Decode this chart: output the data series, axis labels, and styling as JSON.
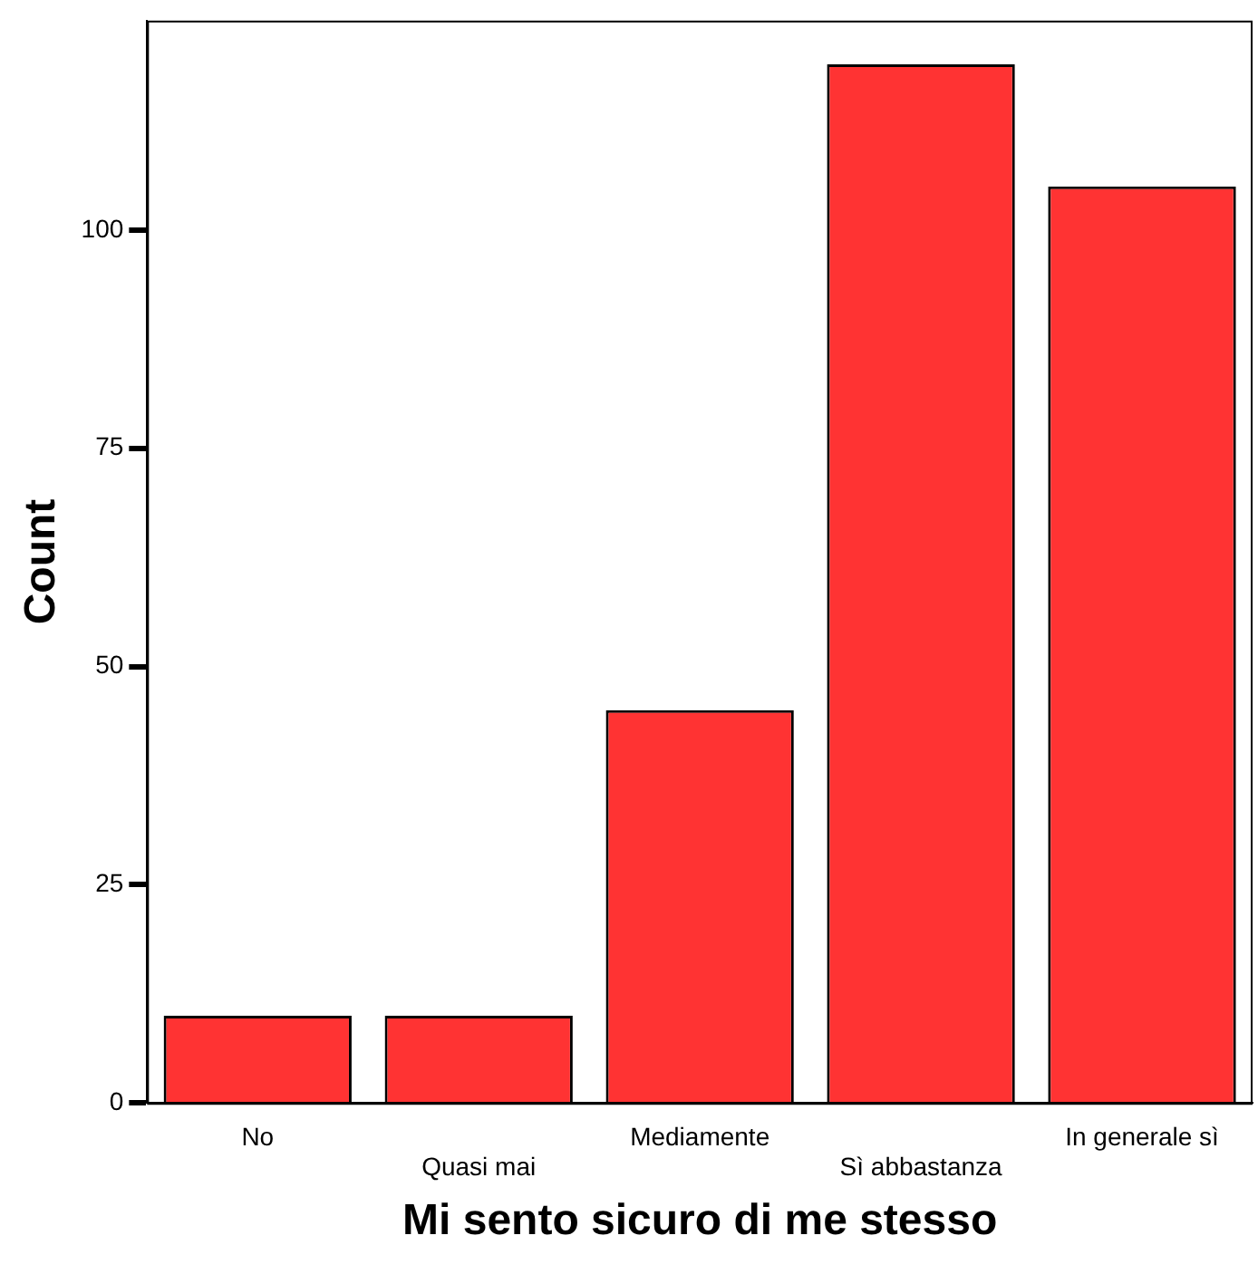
{
  "chart_data": {
    "type": "bar",
    "xlabel": "Mi sento sicuro di me stesso",
    "ylabel": "Count",
    "categories": [
      "No",
      "Quasi mai",
      "Mediamente",
      "Sì abbastanza",
      "In generale sì"
    ],
    "values": [
      10,
      10,
      45,
      119,
      105
    ],
    "color": "#ff3333",
    "ylim": [
      0,
      124
    ],
    "yticks": [
      0,
      25,
      50,
      75,
      100
    ],
    "grid": false,
    "legend": false
  }
}
